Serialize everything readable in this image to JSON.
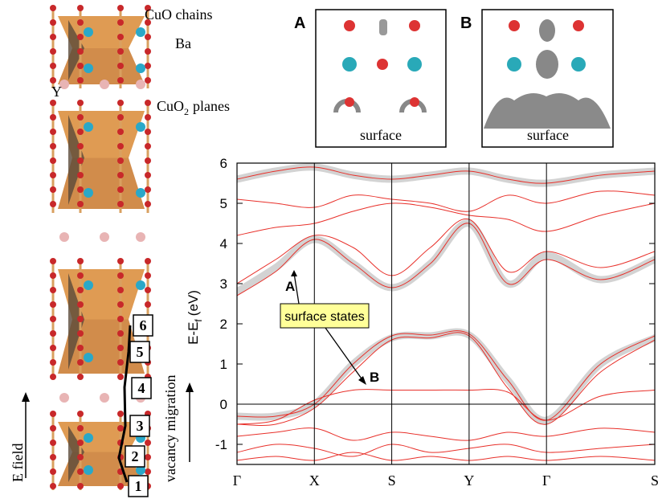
{
  "structure": {
    "labels": {
      "cuo_chains": "CuO  chains",
      "ba": "Ba",
      "y": "Y",
      "cuo2_main": "CuO",
      "cuo2_sub": "2",
      "cuo2_rest": "planes"
    },
    "steps": [
      "1",
      "2",
      "3",
      "4",
      "5",
      "6"
    ],
    "e_field": "E  field",
    "migration": "vacancy  migration"
  },
  "insets": [
    {
      "letter": "A",
      "caption": "surface"
    },
    {
      "letter": "B",
      "caption": "surface"
    }
  ],
  "chart_data": {
    "type": "line",
    "ylabel": {
      "main": "E-E",
      "sub": "f",
      "unit": "(eV)"
    },
    "xlim": [
      0,
      5.4
    ],
    "xticks": [
      {
        "value": 0,
        "label": "Γ"
      },
      {
        "value": 1,
        "label": "X"
      },
      {
        "value": 2,
        "label": "S"
      },
      {
        "value": 3,
        "label": "Y"
      },
      {
        "value": 4,
        "label": "Γ"
      },
      {
        "value": 5.4,
        "label": "S"
      }
    ],
    "ylim": [
      -1.5,
      6
    ],
    "yticks": [
      -1,
      0,
      1,
      2,
      3,
      4,
      5,
      6
    ],
    "fermi_level": 0,
    "x": [
      0,
      0.5,
      1,
      1.5,
      2,
      2.5,
      3,
      3.5,
      4,
      4.7,
      5.4
    ],
    "series": [
      {
        "color": "#d3d3d3",
        "width": 9,
        "values": [
          2.8,
          3.4,
          4.1,
          3.5,
          2.9,
          3.5,
          4.5,
          3.0,
          3.7,
          3.1,
          3.6
        ]
      },
      {
        "color": "#d3d3d3",
        "width": 9,
        "values": [
          -0.3,
          -0.3,
          0.0,
          1.0,
          1.65,
          1.7,
          1.72,
          0.6,
          -0.4,
          1.0,
          1.65
        ]
      },
      {
        "color": "#d3d3d3",
        "width": 9,
        "values": [
          5.6,
          5.8,
          5.9,
          5.7,
          5.6,
          5.7,
          5.8,
          5.6,
          5.5,
          5.7,
          5.8
        ]
      },
      {
        "color": "#e8302a",
        "width": 1,
        "values": [
          -0.3,
          -0.3,
          0.0,
          1.0,
          1.7,
          1.72,
          1.75,
          0.6,
          -0.4,
          1.0,
          1.7
        ]
      },
      {
        "color": "#e8302a",
        "width": 1,
        "values": [
          -0.5,
          -0.5,
          -0.1,
          0.8,
          1.6,
          1.65,
          1.7,
          0.4,
          -0.5,
          0.8,
          1.6
        ]
      },
      {
        "color": "#e8302a",
        "width": 1,
        "values": [
          -0.5,
          -0.4,
          0.1,
          0.35,
          0.35,
          0.35,
          0.35,
          0.3,
          -0.4,
          0.2,
          0.35
        ]
      },
      {
        "color": "#e8302a",
        "width": 1,
        "values": [
          -0.8,
          -0.7,
          -0.6,
          -0.9,
          -0.7,
          -0.8,
          -0.9,
          -0.7,
          -0.8,
          -0.6,
          -0.7
        ]
      },
      {
        "color": "#e8302a",
        "width": 1,
        "values": [
          -1.2,
          -1.0,
          -1.1,
          -1.3,
          -1.0,
          -1.2,
          -1.1,
          -1.0,
          -1.2,
          -1.1,
          -1.0
        ]
      },
      {
        "color": "#e8302a",
        "width": 1,
        "values": [
          -1.4,
          -1.3,
          -1.4,
          -1.2,
          -1.4,
          -1.3,
          -1.4,
          -1.3,
          -1.4,
          -1.3,
          -1.4
        ]
      },
      {
        "color": "#e8302a",
        "width": 1,
        "values": [
          2.7,
          3.3,
          4.1,
          3.5,
          2.9,
          3.5,
          4.5,
          3.0,
          3.6,
          3.1,
          3.6
        ]
      },
      {
        "color": "#e8302a",
        "width": 1,
        "values": [
          3.0,
          3.6,
          4.2,
          3.9,
          3.2,
          3.9,
          4.6,
          3.3,
          3.8,
          3.4,
          3.8
        ]
      },
      {
        "color": "#e8302a",
        "width": 1,
        "values": [
          4.2,
          4.4,
          4.5,
          4.8,
          5.0,
          4.9,
          4.7,
          4.6,
          4.3,
          4.7,
          5.0
        ]
      },
      {
        "color": "#e8302a",
        "width": 1,
        "values": [
          5.1,
          5.0,
          4.9,
          5.2,
          5.1,
          5.0,
          4.8,
          5.2,
          5.0,
          5.3,
          5.2
        ]
      },
      {
        "color": "#e8302a",
        "width": 1,
        "values": [
          5.6,
          5.8,
          5.9,
          5.7,
          5.6,
          5.7,
          5.8,
          5.6,
          5.5,
          5.7,
          5.8
        ]
      }
    ],
    "annotations": {
      "a": "A",
      "b": "B",
      "surface_states": "surface states"
    }
  }
}
